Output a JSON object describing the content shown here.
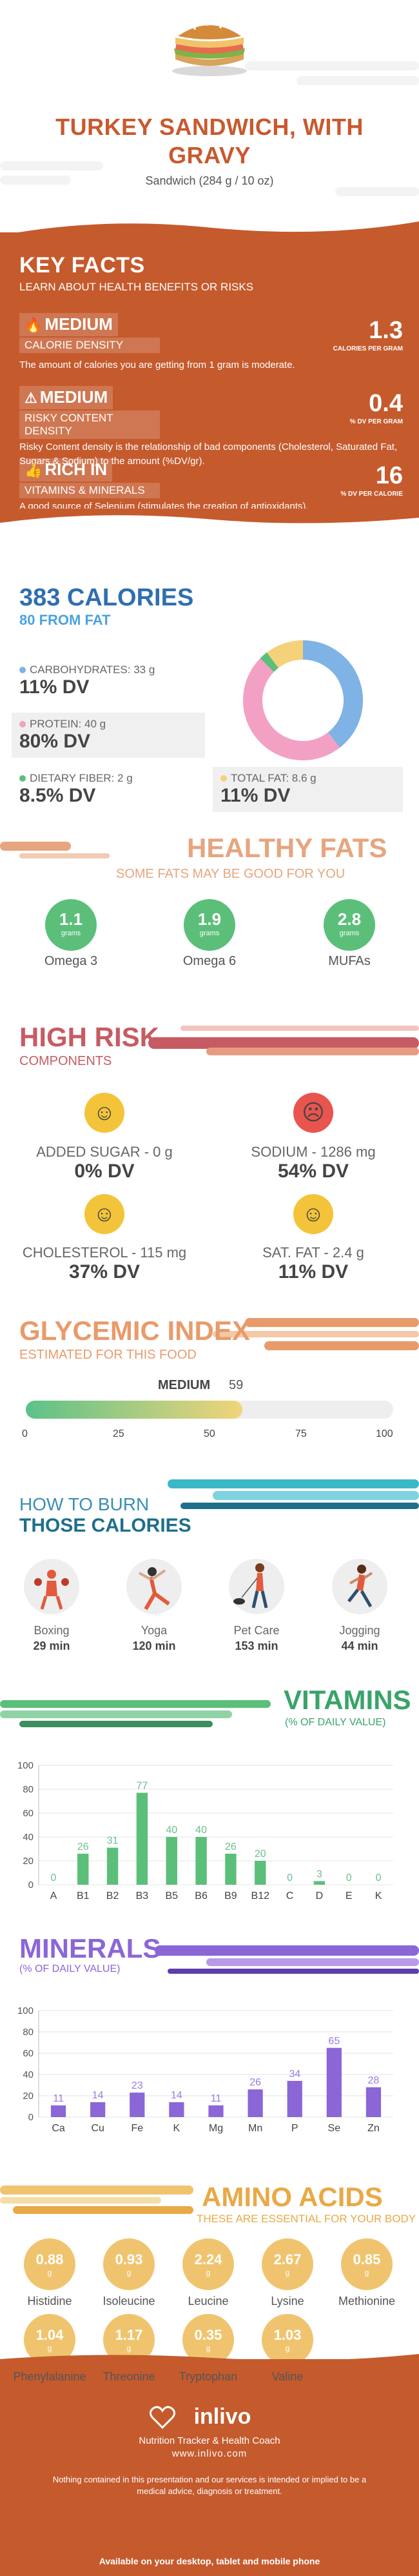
{
  "header": {
    "title": "TURKEY SANDWICH, WITH GRAVY",
    "subtitle": "Sandwich (284 g / 10 oz)"
  },
  "key_facts": {
    "title": "KEY FACTS",
    "subtitle": "LEARN ABOUT HEALTH BENEFITS OR RISKS",
    "items": [
      {
        "badge": "MEDIUM",
        "label": "CALORIE DENSITY",
        "value": "1.3",
        "unit": "CALORIES PER GRAM",
        "desc": "The amount of calories you are getting from 1 gram is moderate.",
        "icon": "flame-icon"
      },
      {
        "badge": "MEDIUM",
        "label": "RISKY CONTENT DENSITY",
        "value": "0.4",
        "unit": "% DV PER GRAM",
        "desc": "Risky Content density is the relationship of bad components (Cholesterol, Saturated Fat, Sugars & Sodium) to the amount (%DV/gr).",
        "icon": "warning-icon"
      },
      {
        "badge": "RICH  IN",
        "label": "VITAMINS & MINERALS",
        "value": "16",
        "unit": "% DV PER CALORIE",
        "desc": "A good source of Selenium (stimulates the creation of antioxidants).",
        "icon": "thumbs-up-icon"
      }
    ]
  },
  "calories": {
    "title": "383 CALORIES",
    "subtitle": "80 FROM FAT",
    "macros": [
      {
        "label": "CARBOHYDRATES: 33 g",
        "dv": "11% DV",
        "color": "#7fb2e5"
      },
      {
        "label": "PROTEIN: 40 g",
        "dv": "80% DV",
        "color": "#f2a1c4"
      },
      {
        "label": "DIETARY FIBER: 2 g",
        "dv": "8.5% DV",
        "color": "#5bbf7a"
      },
      {
        "label": "TOTAL FAT: 8.6 g",
        "dv": "11% DV",
        "color": "#f5d27a"
      }
    ],
    "donut": [
      {
        "name": "Carbohydrates",
        "value": 33,
        "color": "#7fb2e5"
      },
      {
        "name": "Protein",
        "value": 40,
        "color": "#f2a1c4"
      },
      {
        "name": "Dietary fiber",
        "value": 2,
        "color": "#5bbf7a"
      },
      {
        "name": "Total fat",
        "value": 8.6,
        "color": "#f5d27a"
      }
    ]
  },
  "healthy_fats": {
    "title": "HEALTHY FATS",
    "subtitle": "SOME FATS MAY BE GOOD FOR YOU",
    "items": [
      {
        "value": "1.1",
        "unit": "grams",
        "label": "Omega 3"
      },
      {
        "value": "1.9",
        "unit": "grams",
        "label": "Omega 6"
      },
      {
        "value": "2.8",
        "unit": "grams",
        "label": "MUFAs"
      }
    ]
  },
  "high_risk": {
    "title": "HIGH RISK",
    "subtitle": "COMPONENTS",
    "items": [
      {
        "label": "ADDED SUGAR - 0 g",
        "dv": "0% DV",
        "face": "happy-face-icon",
        "color": "#f3c43a"
      },
      {
        "label": "SODIUM - 1286 mg",
        "dv": "54% DV",
        "face": "sad-face-icon",
        "color": "#e8554e"
      },
      {
        "label": "CHOLESTEROL - 115 mg",
        "dv": "37% DV",
        "face": "happy-face-icon",
        "color": "#f3c43a"
      },
      {
        "label": "SAT. FAT - 2.4 g",
        "dv": "11% DV",
        "face": "happy-face-icon",
        "color": "#f3c43a"
      }
    ]
  },
  "glycemic": {
    "title": "GLYCEMIC INDEX",
    "subtitle": "ESTIMATED FOR THIS FOOD",
    "level": "MEDIUM",
    "value": "59",
    "value_num": 59,
    "ticks": [
      "0",
      "25",
      "50",
      "75",
      "100"
    ]
  },
  "burn": {
    "title_line1": "HOW TO BURN",
    "title_line2": "THOSE CALORIES",
    "items": [
      {
        "label": "Boxing",
        "minutes": "29 min",
        "icon": "boxing-icon"
      },
      {
        "label": "Yoga",
        "minutes": "120 min",
        "icon": "yoga-icon"
      },
      {
        "label": "Pet Care",
        "minutes": "153 min",
        "icon": "dog-walking-icon"
      },
      {
        "label": "Jogging",
        "minutes": "44 min",
        "icon": "jogging-icon"
      }
    ]
  },
  "vitamins": {
    "title": "VITAMINS",
    "subtitle": "(% OF DAILY VALUE)",
    "chart_data": {
      "type": "bar",
      "categories": [
        "A",
        "B1",
        "B2",
        "B3",
        "B5",
        "B6",
        "B9",
        "B12",
        "C",
        "D",
        "E",
        "K"
      ],
      "values": [
        0,
        26,
        31,
        77,
        40,
        40,
        26,
        20,
        0,
        3,
        0,
        0
      ],
      "ylim": [
        0,
        100
      ],
      "yticks": [
        0,
        20,
        40,
        60,
        80,
        100
      ],
      "color": "#5bbf7a"
    }
  },
  "minerals": {
    "title": "MINERALS",
    "subtitle": "(% OF DAILY VALUE)",
    "chart_data": {
      "type": "bar",
      "categories": [
        "Ca",
        "Cu",
        "Fe",
        "K",
        "Mg",
        "Mn",
        "P",
        "Se",
        "Zn"
      ],
      "values": [
        11,
        14,
        23,
        14,
        11,
        26,
        34,
        65,
        28
      ],
      "ylim": [
        0,
        100
      ],
      "yticks": [
        0,
        20,
        40,
        60,
        80,
        100
      ],
      "color": "#8b66d6"
    }
  },
  "amino": {
    "title": "AMINO ACIDS",
    "subtitle": "THESE ARE ESSENTIAL FOR YOUR BODY",
    "items": [
      {
        "value": "0.88",
        "unit": "g",
        "label": "Histidine"
      },
      {
        "value": "0.93",
        "unit": "g",
        "label": "Isoleucine"
      },
      {
        "value": "2.24",
        "unit": "g",
        "label": "Leucine"
      },
      {
        "value": "2.67",
        "unit": "g",
        "label": "Lysine"
      },
      {
        "value": "0.85",
        "unit": "g",
        "label": "Methionine"
      },
      {
        "value": "1.04",
        "unit": "g",
        "label": "Phenylalanine"
      },
      {
        "value": "1.17",
        "unit": "g",
        "label": "Threonine"
      },
      {
        "value": "0.35",
        "unit": "g",
        "label": "Tryptophan"
      },
      {
        "value": "1.03",
        "unit": "g",
        "label": "Valine"
      }
    ]
  },
  "footer": {
    "brand": "inlivo",
    "tagline": "Nutrition Tracker & Health Coach",
    "site": "www.inlivo.com",
    "disclaimer": "Nothing contained in this presentation and our services is intended or implied to be a medical advice, diagnosis or treatment.",
    "available": "Available on your desktop, tablet and mobile phone"
  }
}
